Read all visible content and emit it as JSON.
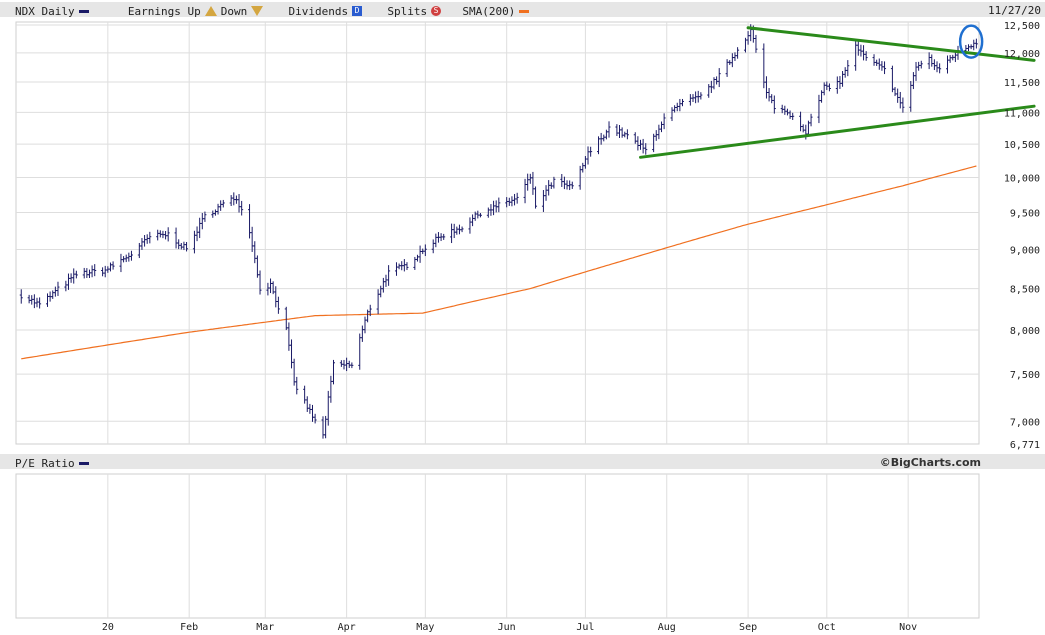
{
  "header": {
    "symbol_label": "NDX Daily",
    "earnings_label": "Earnings",
    "up_label": "Up",
    "down_label": "Down",
    "dividends_label": "Dividends",
    "dividends_badge": "D",
    "splits_label": "Splits",
    "splits_badge": "S",
    "sma_label": "SMA(200)",
    "date": "11/27/20",
    "colors": {
      "price": "#1a1a66",
      "sma": "#f07020",
      "trend": "#2a8a1a",
      "highlight": "#1f6fd0"
    }
  },
  "lower_panel": {
    "label": "P/E Ratio",
    "credit": "©BigCharts.com"
  },
  "chart_data": {
    "type": "bar",
    "title": "NDX Daily",
    "series": [
      {
        "name": "NDX Daily",
        "style": "ohlc",
        "anchors": [
          [
            "2019-11-29",
            8420
          ],
          [
            "2019-12-06",
            8300
          ],
          [
            "2019-12-13",
            8490
          ],
          [
            "2019-12-20",
            8680
          ],
          [
            "2019-12-31",
            8730
          ],
          [
            "2020-01-10",
            8940
          ],
          [
            "2020-01-17",
            9170
          ],
          [
            "2020-01-24",
            9200
          ],
          [
            "2020-01-31",
            9000
          ],
          [
            "2020-02-07",
            9450
          ],
          [
            "2020-02-14",
            9620
          ],
          [
            "2020-02-19",
            9710
          ],
          [
            "2020-02-24",
            9260
          ],
          [
            "2020-02-28",
            8500
          ],
          [
            "2020-03-03",
            8550
          ],
          [
            "2020-03-09",
            8000
          ],
          [
            "2020-03-12",
            7400
          ],
          [
            "2020-03-16",
            7200
          ],
          [
            "2020-03-20",
            7000
          ],
          [
            "2020-03-23",
            6850
          ],
          [
            "2020-03-27",
            7600
          ],
          [
            "2020-04-03",
            7600
          ],
          [
            "2020-04-09",
            8200
          ],
          [
            "2020-04-17",
            8700
          ],
          [
            "2020-04-24",
            8800
          ],
          [
            "2020-04-30",
            9000
          ],
          [
            "2020-05-08",
            9200
          ],
          [
            "2020-05-15",
            9300
          ],
          [
            "2020-05-22",
            9500
          ],
          [
            "2020-05-29",
            9600
          ],
          [
            "2020-06-05",
            9700
          ],
          [
            "2020-06-10",
            10000
          ],
          [
            "2020-06-12",
            9600
          ],
          [
            "2020-06-19",
            9950
          ],
          [
            "2020-06-26",
            9850
          ],
          [
            "2020-07-02",
            10350
          ],
          [
            "2020-07-10",
            10750
          ],
          [
            "2020-07-16",
            10650
          ],
          [
            "2020-07-24",
            10400
          ],
          [
            "2020-07-31",
            10900
          ],
          [
            "2020-08-07",
            11150
          ],
          [
            "2020-08-14",
            11250
          ],
          [
            "2020-08-21",
            11600
          ],
          [
            "2020-08-28",
            12050
          ],
          [
            "2020-09-02",
            12420
          ],
          [
            "2020-09-08",
            11300
          ],
          [
            "2020-09-11",
            11100
          ],
          [
            "2020-09-18",
            10950
          ],
          [
            "2020-09-23",
            10700
          ],
          [
            "2020-09-30",
            11400
          ],
          [
            "2020-10-06",
            11500
          ],
          [
            "2020-10-12",
            12100
          ],
          [
            "2020-10-16",
            11900
          ],
          [
            "2020-10-23",
            11700
          ],
          [
            "2020-10-30",
            11050
          ],
          [
            "2020-11-04",
            11750
          ],
          [
            "2020-11-09",
            11900
          ],
          [
            "2020-11-12",
            11700
          ],
          [
            "2020-11-18",
            11950
          ],
          [
            "2020-11-27",
            12200
          ]
        ]
      },
      {
        "name": "SMA(200)",
        "style": "line",
        "anchors": [
          [
            "2019-11-29",
            7670
          ],
          [
            "2020-01-31",
            7970
          ],
          [
            "2020-03-20",
            8170
          ],
          [
            "2020-04-30",
            8200
          ],
          [
            "2020-06-10",
            8500
          ],
          [
            "2020-07-15",
            8850
          ],
          [
            "2020-08-31",
            9330
          ],
          [
            "2020-09-30",
            9600
          ],
          [
            "2020-10-30",
            9880
          ],
          [
            "2020-11-27",
            10170
          ]
        ]
      }
    ],
    "trendlines": [
      {
        "from": [
          "2020-09-01",
          12450
        ],
        "to": [
          "2020-12-19",
          11870
        ]
      },
      {
        "from": [
          "2020-07-22",
          10300
        ],
        "to": [
          "2020-12-19",
          11100
        ]
      }
    ],
    "highlight": {
      "center": [
        "2020-11-25",
        12200
      ]
    },
    "x_ticks": [
      {
        "date": "2020-01-01",
        "label": "20"
      },
      {
        "date": "2020-02-01",
        "label": "Feb"
      },
      {
        "date": "2020-03-01",
        "label": "Mar"
      },
      {
        "date": "2020-04-01",
        "label": "Apr"
      },
      {
        "date": "2020-05-01",
        "label": "May"
      },
      {
        "date": "2020-06-01",
        "label": "Jun"
      },
      {
        "date": "2020-07-01",
        "label": "Jul"
      },
      {
        "date": "2020-08-01",
        "label": "Aug"
      },
      {
        "date": "2020-09-01",
        "label": "Sep"
      },
      {
        "date": "2020-10-01",
        "label": "Oct"
      },
      {
        "date": "2020-11-01",
        "label": "Nov"
      }
    ],
    "y_ticks": [
      12500,
      12000,
      11500,
      11000,
      10500,
      10000,
      9500,
      9000,
      8500,
      8000,
      7500,
      7000
    ],
    "y_tick_labels": [
      "12,500",
      "12,000",
      "11,500",
      "11,000",
      "10,500",
      "10,000",
      "9,500",
      "9,000",
      "8,500",
      "8,000",
      "7,500",
      "7,000"
    ],
    "y_min_label": "6,771",
    "ylim": [
      6771,
      12500
    ],
    "xlim": [
      "2019-11-27",
      "2020-11-28"
    ],
    "yscale": "log",
    "grid": true
  }
}
